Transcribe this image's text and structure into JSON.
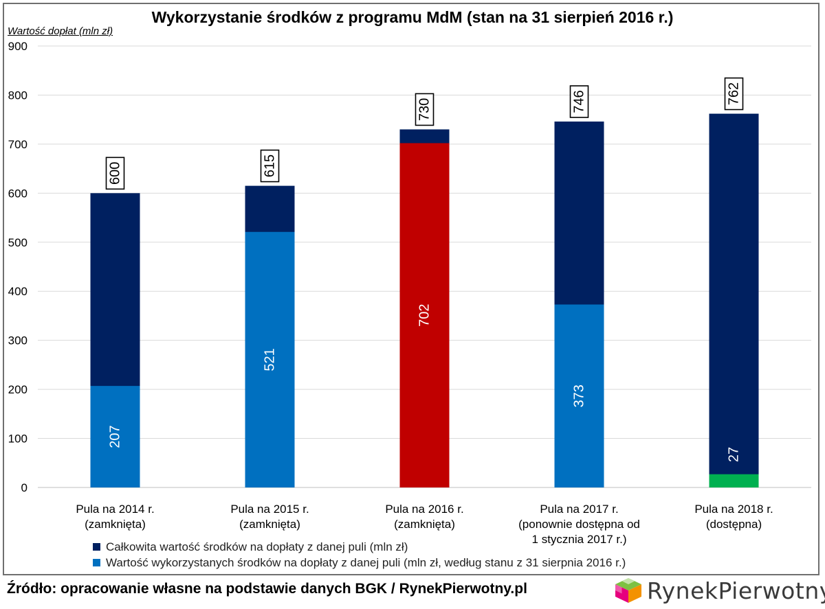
{
  "header": {
    "title": "Wykorzystanie środków z programu MdM (stan na 31 sierpień 2016 r.)",
    "y_axis_title": "Wartość dopłat (mln zł)"
  },
  "chart_data": {
    "type": "bar",
    "stacked": "overlay",
    "title": "Wykorzystanie środków z programu MdM (stan na 31 sierpień 2016 r.)",
    "ylabel": "Wartość dopłat (mln zł)",
    "ylim": [
      0,
      900
    ],
    "yticks": [
      0,
      100,
      200,
      300,
      400,
      500,
      600,
      700,
      800,
      900
    ],
    "grid": true,
    "categories": [
      [
        "Pula na 2014 r.",
        "(zamknięta)"
      ],
      [
        "Pula na 2015 r.",
        "(zamknięta)"
      ],
      [
        "Pula na 2016 r.",
        "(zamknięta)"
      ],
      [
        "Pula na 2017 r.",
        "(ponownie dostępna od",
        "1 stycznia 2017 r.)"
      ],
      [
        "Pula na 2018 r.",
        "(dostępna)"
      ]
    ],
    "series": [
      {
        "name": "Całkowita wartość środków na dopłaty z danej puli (mln zł)",
        "color": "#002060",
        "values": [
          600,
          615,
          730,
          746,
          762
        ]
      },
      {
        "name": "Wartość wykorzystanych środków na dopłaty z danej puli (mln zł, według stanu z 31 sierpnia 2016 r.)",
        "color": "#0070C0",
        "values": [
          207,
          521,
          702,
          373,
          27
        ]
      }
    ],
    "used_bar_colors": [
      "#0070C0",
      "#0070C0",
      "#C00000",
      "#0070C0",
      "#00B050"
    ],
    "total_labels": [
      "600",
      "615",
      "730",
      "746",
      "762"
    ],
    "used_labels": [
      "207",
      "521",
      "702",
      "373",
      "27"
    ]
  },
  "legend": {
    "items": [
      {
        "label": "Całkowita wartość środków na dopłaty z danej puli (mln zł)",
        "color": "#002060"
      },
      {
        "label": "Wartość wykorzystanych środków na dopłaty z danej puli (mln zł, według stanu z 31 sierpnia 2016 r.)",
        "color": "#0070C0"
      }
    ]
  },
  "footer": {
    "source": "Źródło: opracowanie własne na podstawie danych BGK / RynekPierwotny.pl",
    "logo_text": "RynekPierwotny",
    "logo_icon": "cube-logo-icon"
  }
}
